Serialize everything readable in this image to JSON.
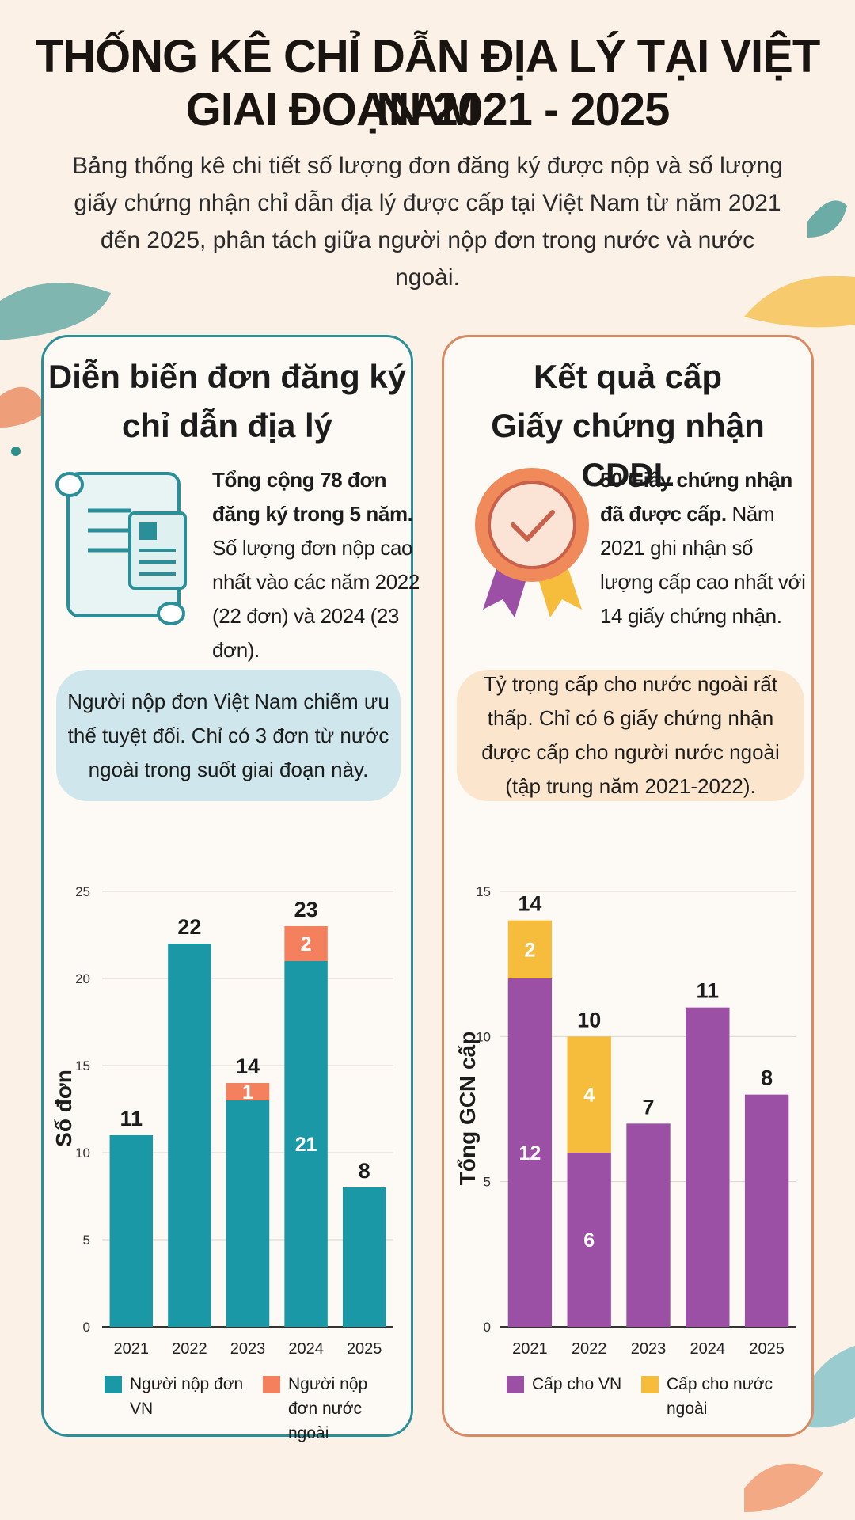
{
  "title": [
    "THỐNG KÊ CHỈ DẪN ĐỊA LÝ TẠI VIỆT NAM",
    "GIAI ĐOẠN 2021 - 2025"
  ],
  "subtitle": "Bảng thống kê chi tiết số lượng đơn đăng ký được nộp và số lượng giấy chứng nhận chỉ dẫn địa lý được cấp tại Việt Nam từ năm 2021 đến 2025, phân tách giữa người nộp đơn trong nước và nước ngoài.",
  "panels": [
    {
      "title": [
        "Diễn biến đơn đăng ký",
        "chỉ dẫn địa lý"
      ],
      "summary_bold": "Tổng cộng 78 đơn đăng ký trong 5 năm.",
      "summary": "Số lượng đơn nộp cao nhất vào các năm 2022 (22 đơn) và 2024 (23 đơn).",
      "callout": "Người nộp đơn Việt Nam chiếm ưu thế tuyệt đối. Chỉ có 3 đơn từ nước ngoài trong suốt giai đoạn này."
    },
    {
      "title": [
        "Kết quả cấp",
        "Giấy chứng nhận CDĐL"
      ],
      "summary_bold": "50 Giấy chứng nhận đã được cấp.",
      "summary": "Năm 2021 ghi nhận số lượng cấp cao nhất với 14 giấy chứng nhận.",
      "callout": "Tỷ trọng cấp cho nước ngoài rất thấp. Chỉ có 6 giấy chứng nhận được cấp cho người nước ngoài (tập trung năm 2021-2022)."
    }
  ],
  "chart_data": [
    {
      "type": "stacked_bar",
      "ylabel": "Số đơn",
      "categories": [
        "2021",
        "2022",
        "2023",
        "2024",
        "2025"
      ],
      "series": [
        {
          "name": "Người nộp đơn VN",
          "color": "#1a98a5",
          "values": [
            11,
            22,
            13,
            21,
            8
          ],
          "value_labels": [
            null,
            null,
            null,
            "21",
            null
          ]
        },
        {
          "name": "Người nộp đơn nước ngoài",
          "color": "#f5805e",
          "values": [
            0,
            0,
            1,
            2,
            0
          ],
          "value_labels": [
            null,
            null,
            "1",
            "2",
            null
          ]
        }
      ],
      "totals": [
        11,
        22,
        14,
        23,
        8
      ],
      "ylim": [
        0,
        25
      ],
      "yticks": [
        0,
        5,
        10,
        15,
        20,
        25
      ],
      "grid": true
    },
    {
      "type": "stacked_bar",
      "ylabel": "Tổng GCN cấp",
      "categories": [
        "2021",
        "2022",
        "2023",
        "2024",
        "2025"
      ],
      "series": [
        {
          "name": "Cấp cho VN",
          "color": "#9b4fa5",
          "values": [
            12,
            6,
            7,
            11,
            8
          ],
          "value_labels": [
            "12",
            "6",
            null,
            null,
            null
          ]
        },
        {
          "name": "Cấp cho nước ngoài",
          "color": "#f6bd3c",
          "values": [
            2,
            4,
            0,
            0,
            0
          ],
          "value_labels": [
            "2",
            "4",
            null,
            null,
            null
          ]
        }
      ],
      "totals": [
        14,
        10,
        7,
        11,
        8
      ],
      "ylim": [
        0,
        15
      ],
      "yticks": [
        0,
        5,
        10,
        15
      ],
      "grid": true
    }
  ]
}
